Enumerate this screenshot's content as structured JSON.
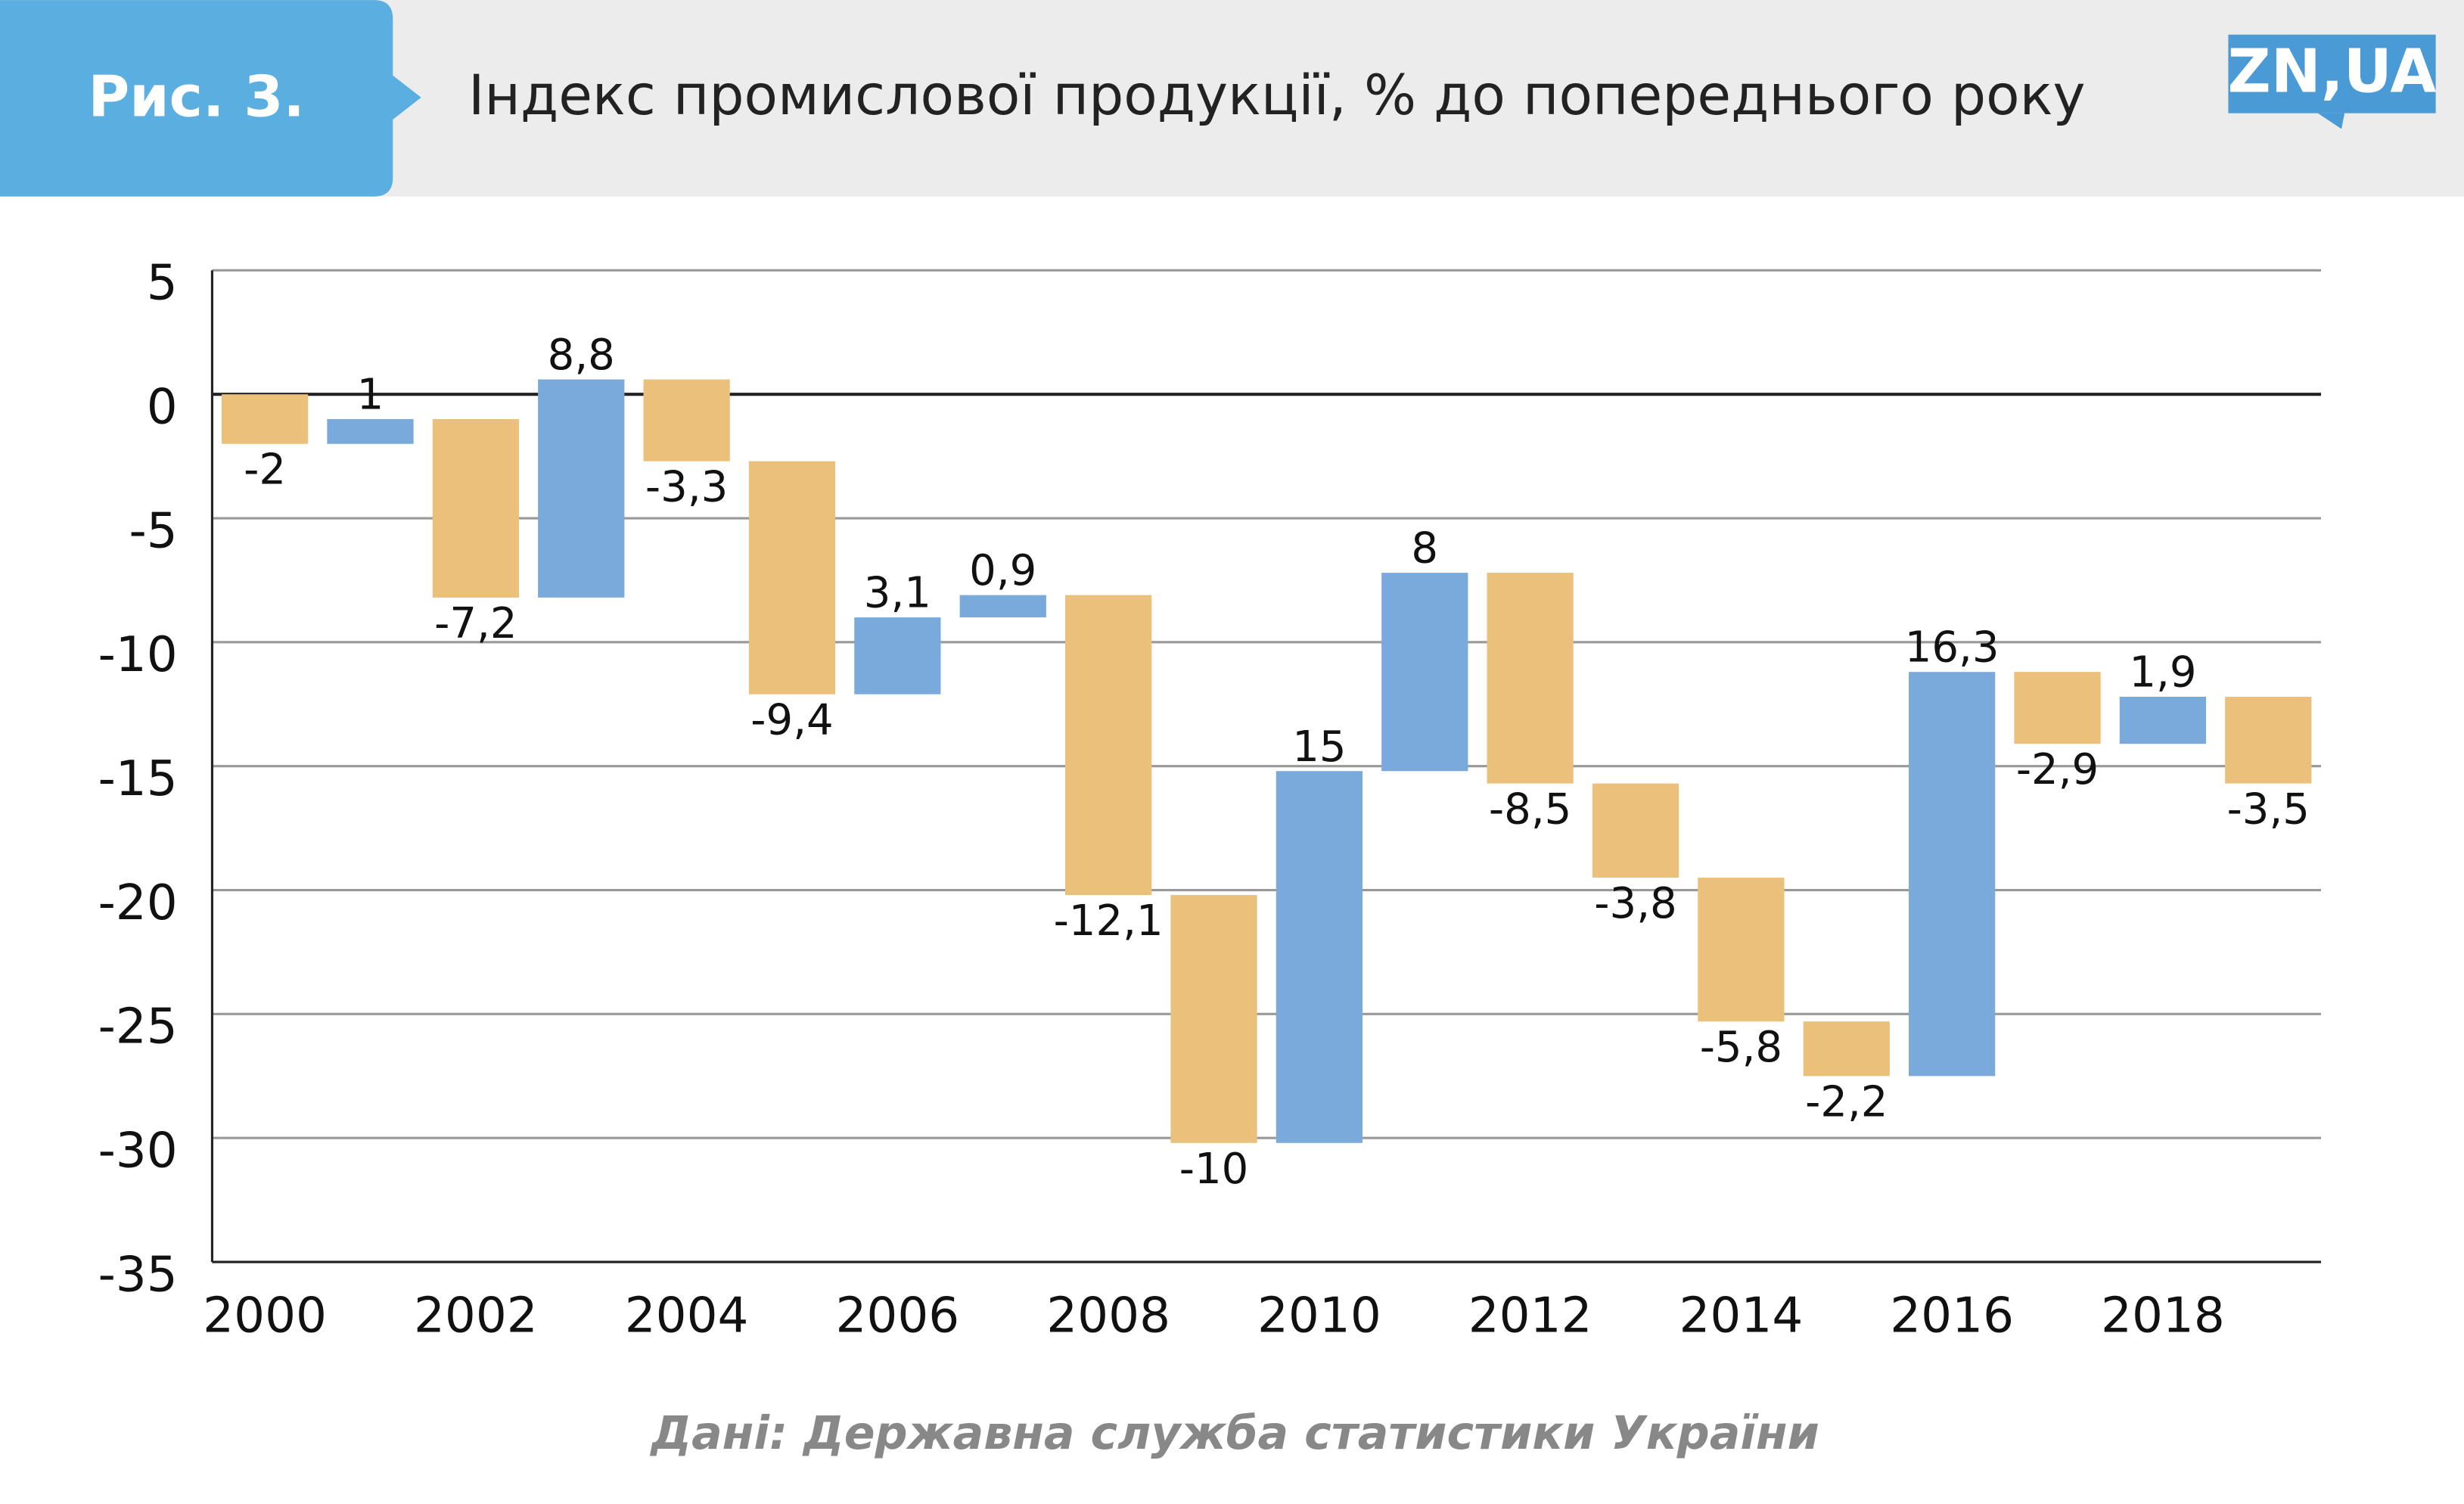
{
  "header": {
    "figure": "Рис. 3.",
    "logo": "ZN,UA"
  },
  "chart_data": {
    "type": "waterfall",
    "title": "Індекс промислової продукції, % до попереднього року",
    "source": "Дані: Державна служба статистики України",
    "categories": [
      "2000",
      null,
      "2002",
      null,
      "2004",
      null,
      "2006",
      null,
      "2008",
      null,
      "2010",
      null,
      "2012",
      null,
      "2014",
      null,
      "2016",
      null,
      "2018",
      null
    ],
    "values": [
      -2,
      1,
      -7.2,
      8.8,
      -3.3,
      -9.4,
      3.1,
      0.9,
      -12.1,
      -10,
      15,
      8,
      -8.5,
      -3.8,
      -5.8,
      -2.2,
      16.3,
      -2.9,
      1.9,
      -3.5
    ],
    "value_labels": [
      "-2",
      "1",
      "-7,2",
      "8,8",
      "-3,3",
      "-9,4",
      "3,1",
      "0,9",
      "-12,1",
      "-10",
      "15",
      "8",
      "-8,5",
      "-3,8",
      "-5,8",
      "-2,2",
      "16,3",
      "-2,9",
      "1,9",
      "-3,5"
    ],
    "increase_color": "#7aaadb",
    "decrease_color": "#ebc07b",
    "ylim": [
      -35,
      5
    ],
    "yticks": [
      -35,
      -30,
      -25,
      -20,
      -15,
      -10,
      -5,
      0,
      5
    ],
    "grid": true
  }
}
